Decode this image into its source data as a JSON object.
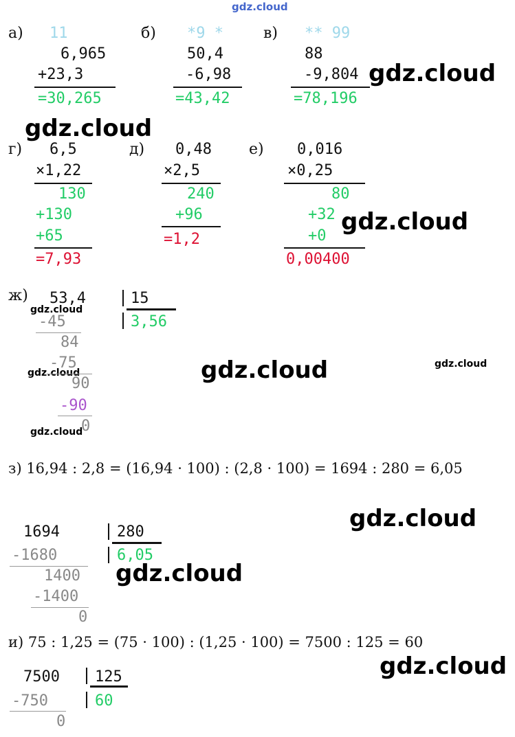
{
  "watermark": "gdz.cloud",
  "colors": {
    "result": "#22cc66",
    "final": "#dd1133",
    "carry": "#9fd8ea"
  },
  "a": {
    "label": "а)",
    "carry": "11",
    "op1": "6,965",
    "op2": "+23,3",
    "res": "=30,265"
  },
  "b": {
    "label": "б)",
    "carry": "*9 *",
    "op1": "50,4",
    "op2": "-6,98",
    "res": "=43,42"
  },
  "v": {
    "label": "в)",
    "carry": "** 99",
    "op1": "88",
    "op2": "-9,804",
    "res": "=78,196"
  },
  "g": {
    "label": "г)",
    "op1": "6,5",
    "op2": "×1,22",
    "p1": "130",
    "p2": "+130",
    "p3": "+65",
    "res": "=7,93"
  },
  "d": {
    "label": "д)",
    "op1": "0,48",
    "op2": "×2,5",
    "p1": "240",
    "p2": "+96",
    "res": "=1,2"
  },
  "e": {
    "label": "е)",
    "op1": "0,016",
    "op2": "×0,25",
    "p1": "80",
    "p2": "+32",
    "p3": "+0",
    "res": "0,00400"
  },
  "zh": {
    "label": "ж)",
    "dividend": "53,4",
    "divisor": "15",
    "quotient": "3,56",
    "s1": "-45",
    "r1": "84",
    "s2": "-75",
    "r2": "90",
    "s3": "-90",
    "r3": "0"
  },
  "z": {
    "expr": "з) 16,94 : 2,8 = (16,94 · 100) : (2,8 · 100) = 1694 : 280 = 6,05",
    "dividend": "1694",
    "divisor": "280",
    "quotient": "6,05",
    "s1": "-1680",
    "r1": "1400",
    "s2": "-1400",
    "r2": "0"
  },
  "i": {
    "expr": "и) 75 : 1,25 = (75 · 100) : (1,25 · 100) = 7500 : 125 = 60",
    "dividend": "7500",
    "divisor": "125",
    "quotient": "60",
    "s1": "-750",
    "r1": "0"
  }
}
